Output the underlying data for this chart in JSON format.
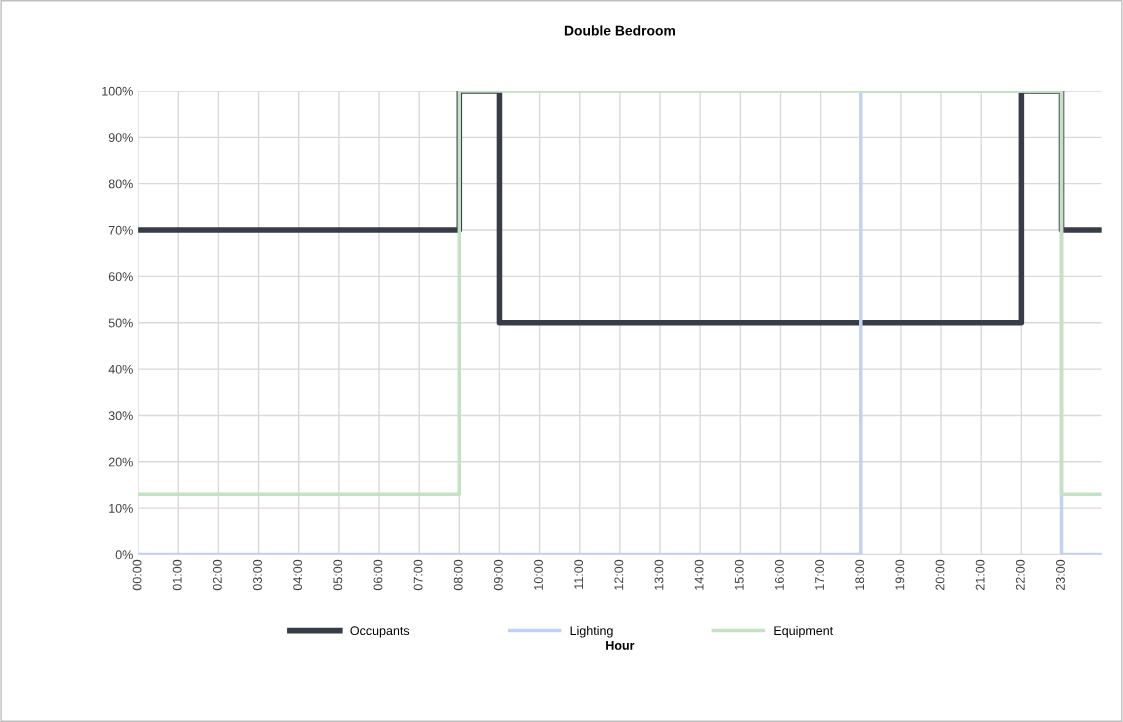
{
  "chart_data": {
    "type": "step",
    "title": "Double Bedroom",
    "xlabel": "Hour",
    "x": [
      0,
      1,
      2,
      3,
      4,
      5,
      6,
      7,
      8,
      9,
      10,
      11,
      12,
      13,
      14,
      15,
      16,
      17,
      18,
      19,
      20,
      21,
      22,
      23,
      24
    ],
    "series": [
      {
        "name": "Occupants",
        "color": "#383c47",
        "values": [
          70,
          70,
          70,
          70,
          70,
          70,
          70,
          70,
          100,
          50,
          50,
          50,
          50,
          50,
          50,
          50,
          50,
          50,
          50,
          50,
          50,
          50,
          100,
          70,
          70
        ]
      },
      {
        "name": "Lighting",
        "color": "#c3d1f2",
        "values": [
          0,
          0,
          0,
          0,
          0,
          0,
          0,
          0,
          0,
          0,
          0,
          0,
          0,
          0,
          0,
          0,
          0,
          0,
          100,
          100,
          100,
          100,
          100,
          0,
          0
        ]
      },
      {
        "name": "Equipment",
        "color": "#c5e0c4",
        "values": [
          13,
          13,
          13,
          13,
          13,
          13,
          13,
          13,
          100,
          100,
          100,
          100,
          100,
          100,
          100,
          100,
          100,
          100,
          100,
          100,
          100,
          100,
          100,
          13,
          13
        ]
      }
    ],
    "xlim": [
      0,
      24
    ],
    "xticks": [
      {
        "value": 0,
        "label": "00:00"
      },
      {
        "value": 1,
        "label": "01:00"
      },
      {
        "value": 2,
        "label": "02:00"
      },
      {
        "value": 3,
        "label": "03:00"
      },
      {
        "value": 4,
        "label": "04:00"
      },
      {
        "value": 5,
        "label": "05:00"
      },
      {
        "value": 6,
        "label": "06:00"
      },
      {
        "value": 7,
        "label": "07:00"
      },
      {
        "value": 8,
        "label": "08:00"
      },
      {
        "value": 9,
        "label": "09:00"
      },
      {
        "value": 10,
        "label": "10:00"
      },
      {
        "value": 11,
        "label": "11:00"
      },
      {
        "value": 12,
        "label": "12:00"
      },
      {
        "value": 13,
        "label": "13:00"
      },
      {
        "value": 14,
        "label": "14:00"
      },
      {
        "value": 15,
        "label": "15:00"
      },
      {
        "value": 16,
        "label": "16:00"
      },
      {
        "value": 17,
        "label": "17:00"
      },
      {
        "value": 18,
        "label": "18:00"
      },
      {
        "value": 19,
        "label": "19:00"
      },
      {
        "value": 20,
        "label": "20:00"
      },
      {
        "value": 21,
        "label": "21:00"
      },
      {
        "value": 22,
        "label": "22:00"
      },
      {
        "value": 23,
        "label": "23:00"
      }
    ],
    "ylim": [
      0,
      100
    ],
    "yticks": [
      {
        "value": 0,
        "label": "0%"
      },
      {
        "value": 10,
        "label": "10%"
      },
      {
        "value": 20,
        "label": "20%"
      },
      {
        "value": 30,
        "label": "30%"
      },
      {
        "value": 40,
        "label": "40%"
      },
      {
        "value": 50,
        "label": "50%"
      },
      {
        "value": 60,
        "label": "60%"
      },
      {
        "value": 70,
        "label": "70%"
      },
      {
        "value": 80,
        "label": "80%"
      },
      {
        "value": 90,
        "label": "90%"
      },
      {
        "value": 100,
        "label": "100%"
      }
    ],
    "grid": true,
    "legend": "bottom",
    "line_style": "solid"
  }
}
